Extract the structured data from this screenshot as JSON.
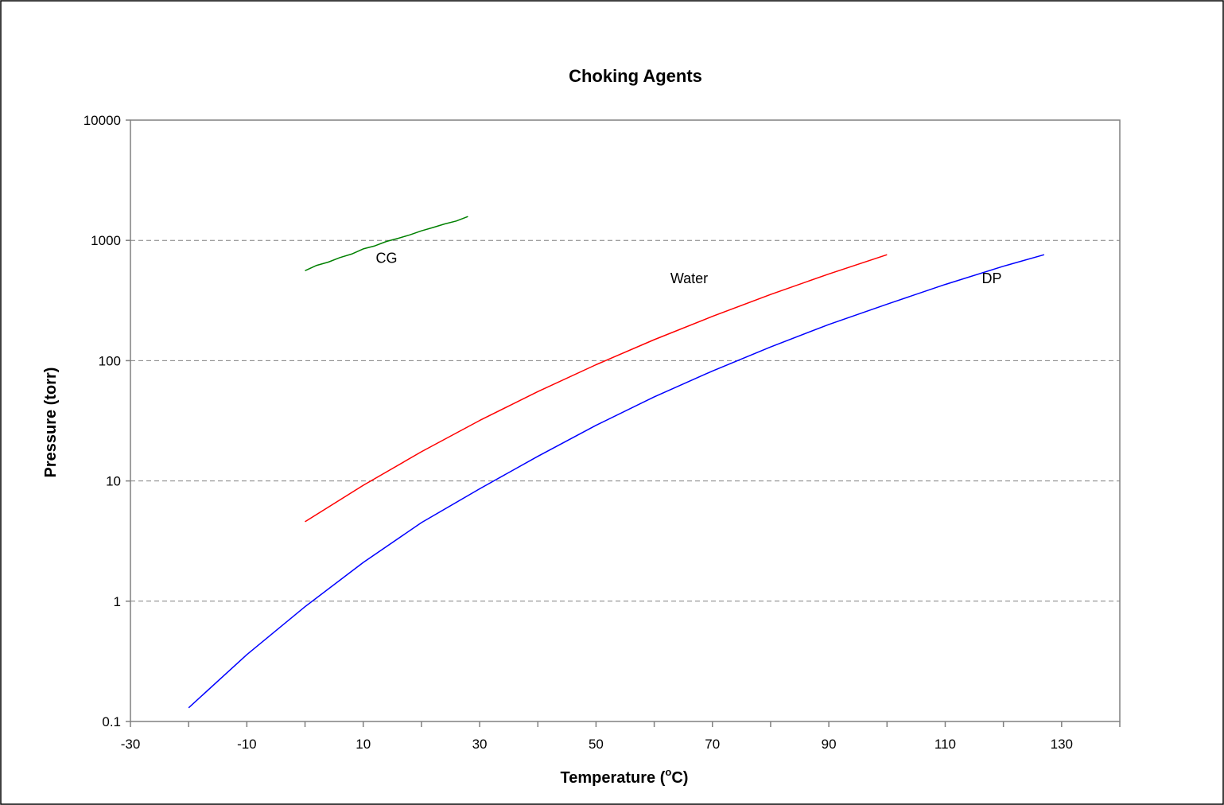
{
  "chart_data": {
    "type": "line",
    "title": "Choking Agents",
    "xlabel_main": "Temperature (",
    "xlabel_sup": "o",
    "xlabel_tail": "C)",
    "ylabel": "Pressure (torr)",
    "xlim": [
      -30,
      140
    ],
    "ylim": [
      0.1,
      10000
    ],
    "y_scale": "log",
    "x_tick_labels": [
      "-30",
      "-10",
      "10",
      "30",
      "50",
      "70",
      "90",
      "110",
      "130"
    ],
    "x_tick_values": [
      -30,
      -10,
      10,
      30,
      50,
      70,
      90,
      110,
      130
    ],
    "x_minor_tick_values": [
      -20,
      0,
      20,
      40,
      60,
      80,
      100,
      120,
      140
    ],
    "y_tick_labels": [
      "0.1",
      "1",
      "10",
      "100",
      "1000",
      "10000"
    ],
    "y_tick_values": [
      0.1,
      1,
      10,
      100,
      1000,
      10000
    ],
    "gridlines": "horizontal dashed",
    "legend": "none",
    "series": [
      {
        "name": "CG",
        "color": "#008000",
        "label_at": [
          14,
          650
        ],
        "x": [
          0,
          2,
          4,
          6,
          8,
          10,
          12,
          14,
          16,
          18,
          20,
          22,
          24,
          26,
          28
        ],
        "y": [
          560,
          620,
          660,
          720,
          770,
          850,
          900,
          980,
          1040,
          1110,
          1200,
          1280,
          1370,
          1450,
          1580
        ]
      },
      {
        "name": "Water",
        "color": "#ff0000",
        "label_at": [
          66,
          440
        ],
        "x": [
          0,
          10,
          20,
          30,
          40,
          50,
          60,
          70,
          80,
          90,
          100
        ],
        "y": [
          4.58,
          9.2,
          17.5,
          31.8,
          55.3,
          92.5,
          149.4,
          233.7,
          355.1,
          525.8,
          760
        ]
      },
      {
        "name": "DP",
        "color": "#0000ff",
        "label_at": [
          118,
          440
        ],
        "x": [
          -20,
          -10,
          0,
          10,
          20,
          30,
          40,
          50,
          60,
          70,
          80,
          90,
          100,
          110,
          120,
          127
        ],
        "y": [
          0.13,
          0.36,
          0.9,
          2.1,
          4.5,
          8.6,
          16,
          29,
          50,
          82,
          130,
          200,
          295,
          430,
          610,
          760
        ]
      }
    ]
  }
}
